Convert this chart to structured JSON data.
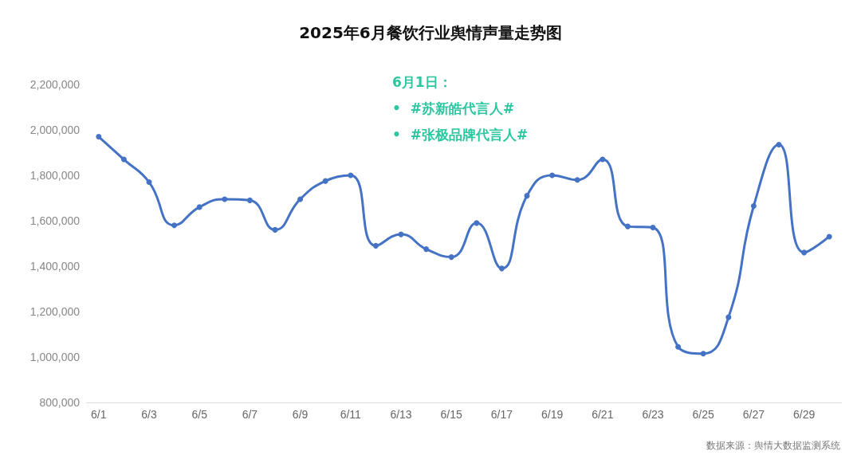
{
  "chart_data": {
    "type": "line",
    "title": "2025年6月餐饮行业舆情声量走势图",
    "categories": [
      "6/1",
      null,
      "6/3",
      null,
      "6/5",
      null,
      "6/7",
      null,
      "6/9",
      null,
      "6/11",
      null,
      "6/13",
      null,
      "6/15",
      null,
      "6/17",
      null,
      "6/19",
      null,
      "6/21",
      null,
      "6/23",
      null,
      "6/25",
      null,
      "6/27",
      null,
      "6/29",
      null
    ],
    "series": [
      {
        "color": "#4472c4",
        "values": [
          1970000,
          1870000,
          1770000,
          1580000,
          1660000,
          1695000,
          1690000,
          1560000,
          1695000,
          1775000,
          1800000,
          1490000,
          1540000,
          1475000,
          1440000,
          1590000,
          1390000,
          1710000,
          1800000,
          1780000,
          1870000,
          1575000,
          1570000,
          1045000,
          1015000,
          1175000,
          1665000,
          1935000,
          1460000,
          1530000
        ]
      }
    ],
    "ylim": [
      800000,
      2200000
    ],
    "yticks": [
      {
        "value": 800000,
        "label": "800,000"
      },
      {
        "value": 1000000,
        "label": "1,000,000"
      },
      {
        "value": 1200000,
        "label": "1,200,000"
      },
      {
        "value": 1400000,
        "label": "1,400,000"
      },
      {
        "value": 1600000,
        "label": "1,600,000"
      },
      {
        "value": 1800000,
        "label": "1,800,000"
      },
      {
        "value": 2000000,
        "label": "2,000,000"
      },
      {
        "value": 2200000,
        "label": "2,200,000"
      }
    ],
    "grid": false,
    "marker": "circle",
    "line_style": "solid",
    "annotations": [
      "6月1日：",
      "•  #苏新皓代言人#",
      "•  #张极品牌代言人#",
      "数据来源：舆情大数据监测系统"
    ]
  }
}
